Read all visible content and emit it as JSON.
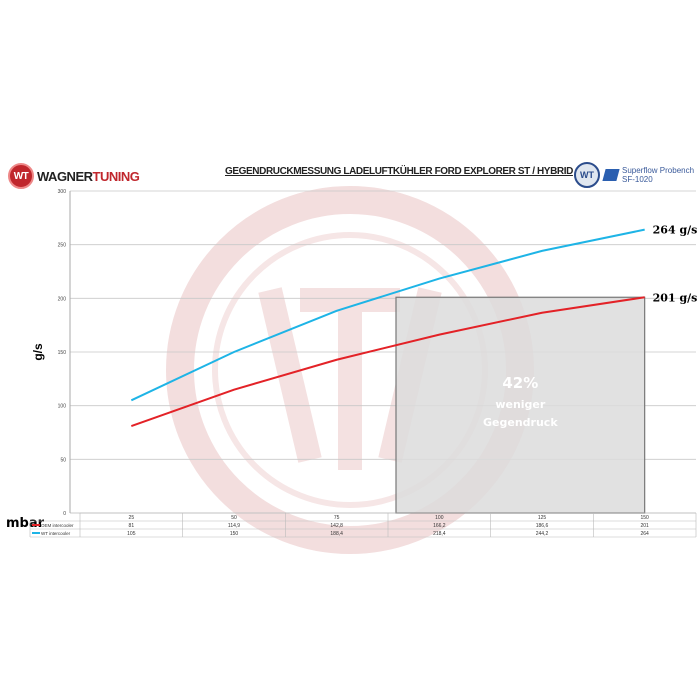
{
  "header": {
    "brand_left": "WAGNER",
    "brand_right": "TUNING",
    "brand_logo": "WT",
    "title": "GEGENDRUCKMESSUNG LADELUFTKÜHLER FORD EXPLORER ST / HYBRID",
    "partner_line1": "Superflow Probench",
    "partner_line2": "SF-1020",
    "partner_logo": "WT"
  },
  "chart_data": {
    "type": "line",
    "title": "GEGENDRUCKMESSUNG LADELUFTKÜHLER FORD EXPLORER ST / HYBRID",
    "xlabel": "mbar",
    "ylabel": "g/s",
    "categories": [
      "25",
      "50",
      "75",
      "100",
      "125",
      "150"
    ],
    "ylim": [
      0,
      300
    ],
    "yticks": [
      "0",
      "50",
      "100",
      "150",
      "200",
      "250",
      "300"
    ],
    "grid": true,
    "series": [
      {
        "name": "OEM intercooler",
        "color": "#e32227",
        "values": [
          81,
          114.9,
          142.8,
          166.2,
          186.6,
          201
        ],
        "labels": [
          "81",
          "114,9",
          "142,8",
          "166,2",
          "186,6",
          "201"
        ],
        "end_label": "201 g/s"
      },
      {
        "name": "WT intercooler",
        "color": "#1eb4e6",
        "values": [
          105,
          150,
          188.4,
          218.4,
          244.2,
          264
        ],
        "labels": [
          "105",
          "150",
          "188,4",
          "218,4",
          "244,2",
          "264"
        ],
        "end_label": "264 g/s"
      }
    ],
    "annotation": {
      "line1": "42%",
      "line2": "weniger",
      "line3": "Gegendruck",
      "x_from": "100",
      "x_to": "150",
      "y_top": 201,
      "fill": "#dcdcdc"
    }
  }
}
